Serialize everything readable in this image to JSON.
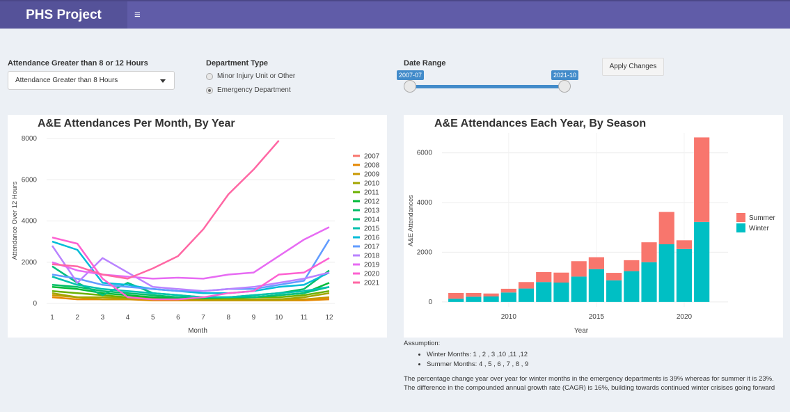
{
  "header": {
    "brand": "PHS Project",
    "menu_icon": "hamburger-icon",
    "menu_glyph": "≡"
  },
  "controls": {
    "attendance": {
      "label": "Attendance Greater than 8 or 12 Hours",
      "selected": "Attendance Greater than 8 Hours"
    },
    "department": {
      "label": "Department Type",
      "options": [
        "Minor Injury Unit or Other",
        "Emergency Department"
      ],
      "selected": "Emergency Department"
    },
    "date_range": {
      "label": "Date Range",
      "start": "2007-07",
      "end": "2021-10"
    },
    "apply_label": "Apply Changes"
  },
  "colors": {
    "header": "#605ca8",
    "brand": "#555299",
    "summer": "#f8766d",
    "winter": "#00bfc4",
    "slider": "#428bca"
  },
  "chart_data": [
    {
      "type": "line",
      "title": "A&E Attendances Per Month, By Year",
      "xlabel": "Month",
      "ylabel": "Attendance Over 12 Hours",
      "xlim": [
        1,
        12
      ],
      "ylim": [
        0,
        8000
      ],
      "x_ticks": [
        "1",
        "2",
        "3",
        "4",
        "5",
        "6",
        "7",
        "8",
        "9",
        "10",
        "11",
        "12"
      ],
      "y_ticks": [
        "0",
        "2000",
        "4000",
        "6000",
        "8000"
      ],
      "legend": "right",
      "series": [
        {
          "name": "2007",
          "color": "#f8766d",
          "values": [
            null,
            null,
            null,
            null,
            null,
            null,
            300,
            200,
            200,
            200,
            200,
            250
          ]
        },
        {
          "name": "2008",
          "color": "#e58700",
          "values": [
            300,
            200,
            200,
            200,
            150,
            150,
            150,
            150,
            150,
            150,
            150,
            200
          ]
        },
        {
          "name": "2009",
          "color": "#c99800",
          "values": [
            400,
            300,
            200,
            200,
            200,
            200,
            150,
            150,
            150,
            150,
            200,
            300
          ]
        },
        {
          "name": "2010",
          "color": "#a3a500",
          "values": [
            500,
            300,
            300,
            250,
            250,
            200,
            200,
            200,
            200,
            200,
            300,
            500
          ]
        },
        {
          "name": "2011",
          "color": "#6bb100",
          "values": [
            600,
            500,
            400,
            300,
            300,
            250,
            250,
            250,
            300,
            300,
            400,
            600
          ]
        },
        {
          "name": "2012",
          "color": "#00ba38",
          "values": [
            800,
            700,
            500,
            400,
            300,
            250,
            250,
            300,
            300,
            400,
            500,
            1000
          ]
        },
        {
          "name": "2013",
          "color": "#00be67",
          "values": [
            900,
            800,
            600,
            500,
            400,
            300,
            300,
            300,
            400,
            500,
            700,
            1600
          ]
        },
        {
          "name": "2014",
          "color": "#00bf7d",
          "values": [
            1800,
            1000,
            400,
            1000,
            500,
            400,
            300,
            300,
            300,
            400,
            500,
            800
          ]
        },
        {
          "name": "2015",
          "color": "#00c0af",
          "values": [
            1300,
            900,
            700,
            600,
            500,
            400,
            300,
            300,
            400,
            500,
            600,
            800
          ]
        },
        {
          "name": "2016",
          "color": "#00bcd8",
          "values": [
            3000,
            2600,
            1000,
            900,
            700,
            600,
            500,
            500,
            600,
            800,
            900,
            1500
          ]
        },
        {
          "name": "2017",
          "color": "#619cff",
          "values": [
            1400,
            1200,
            900,
            800,
            700,
            600,
            600,
            700,
            700,
            900,
            1100,
            3100
          ]
        },
        {
          "name": "2018",
          "color": "#b983ff",
          "values": [
            2800,
            1000,
            2200,
            1500,
            800,
            700,
            600,
            700,
            800,
            1000,
            1200,
            1500
          ]
        },
        {
          "name": "2019",
          "color": "#e76bf3",
          "values": [
            2000,
            1600,
            1400,
            1300,
            1200,
            1250,
            1200,
            1400,
            1500,
            2300,
            3100,
            3700
          ]
        },
        {
          "name": "2020",
          "color": "#fd61d1",
          "values": [
            3200,
            2900,
            1200,
            300,
            200,
            200,
            300,
            500,
            600,
            1400,
            1500,
            2200
          ]
        },
        {
          "name": "2021",
          "color": "#ff67a4",
          "values": [
            1900,
            1800,
            1400,
            1200,
            1700,
            2300,
            3600,
            5300,
            6500,
            7900,
            null,
            null
          ]
        }
      ]
    },
    {
      "type": "bar",
      "stacked": true,
      "title": "A&E Attendances Each Year, By Season",
      "xlabel": "Year",
      "ylabel": "A&E Attendances",
      "xlim": [
        2006.2,
        2022.5
      ],
      "ylim": [
        -200,
        6800
      ],
      "x_ticks": [
        "2010",
        "2015",
        "2020"
      ],
      "y_ticks": [
        "0",
        "2000",
        "4000",
        "6000"
      ],
      "legend": "right",
      "x": [
        2007,
        2008,
        2009,
        2010,
        2011,
        2012,
        2013,
        2014,
        2015,
        2016,
        2017,
        2018,
        2019,
        2020,
        2021
      ],
      "series": [
        {
          "name": "Summer",
          "color": "#f8766d",
          "values": [
            230,
            150,
            120,
            150,
            260,
            400,
            400,
            620,
            480,
            300,
            440,
            800,
            1300,
            350,
            3400
          ]
        },
        {
          "name": "Winter",
          "color": "#00bfc4",
          "values": [
            130,
            210,
            220,
            380,
            540,
            800,
            780,
            1020,
            1320,
            870,
            1240,
            1600,
            2320,
            2130,
            3220
          ]
        }
      ]
    }
  ],
  "notes": {
    "heading": "Assumption:",
    "bullets": [
      "Winter Months: 1 , 2 , 3 ,10 ,11 ,12",
      "Summer Months: 4 , 5 , 6 , 7 , 8 , 9"
    ],
    "paragraph": "The percentage change year over year for winter months in the emergency departments is 39% whereas for summer it is 23%. The difference in the compounded annual growth rate (CAGR) is 16%, building towards continued winter crisises going forward"
  }
}
